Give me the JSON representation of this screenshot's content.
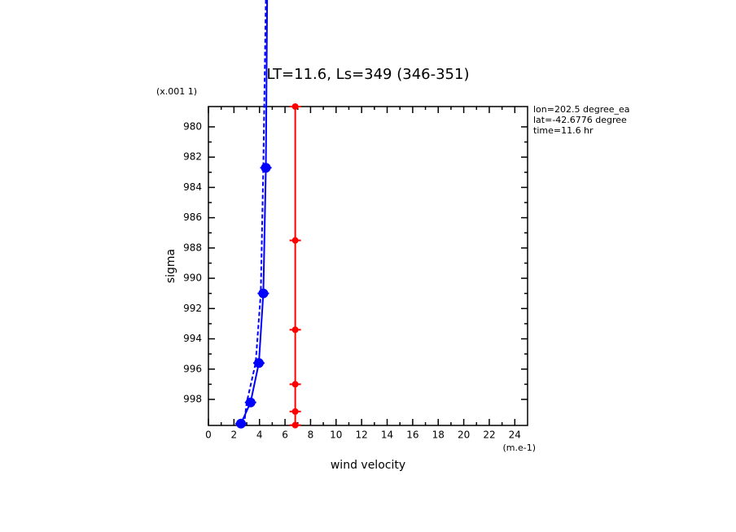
{
  "chart_data": {
    "type": "profile",
    "title": "LT=11.6, Ls=349 (346-351)",
    "y_units": "(x.001 1)",
    "ylabel": "sigma",
    "xlabel": "wind velocity",
    "x_units": "(m.e-1)",
    "annotations": [
      "lon=202.5 degree_ea",
      "lat=-42.6776 degree",
      "time=11.6 hr"
    ],
    "xlim": [
      0,
      25
    ],
    "xticks": [
      0,
      2,
      4,
      6,
      8,
      10,
      12,
      14,
      16,
      18,
      20,
      22,
      24
    ],
    "ylim": [
      999.72,
      978.66
    ],
    "yticks": [
      980,
      982,
      984,
      986,
      988,
      990,
      992,
      994,
      996,
      998
    ],
    "series": [
      {
        "color": "#0000ff",
        "style": "solid",
        "markers": true,
        "values": [
          4.6,
          4.5,
          4.3,
          3.95,
          3.3,
          2.55
        ],
        "sigma": [
          971.6,
          982.7,
          991.0,
          995.6,
          998.2,
          999.6
        ]
      },
      {
        "color": "#0000ff",
        "style": "dashed",
        "markers": false,
        "values": [
          4.5,
          4.3,
          4.1,
          3.7,
          3.0,
          2.8
        ],
        "sigma": [
          971.6,
          982.7,
          991.0,
          995.6,
          998.2,
          999.6
        ]
      },
      {
        "color": "#ff0000",
        "style": "solid",
        "markers": true,
        "values": [
          6.8,
          6.8,
          6.8,
          6.8,
          6.8,
          6.8
        ],
        "sigma": [
          978.66,
          987.5,
          993.4,
          997.0,
          998.8,
          999.7
        ]
      }
    ]
  }
}
